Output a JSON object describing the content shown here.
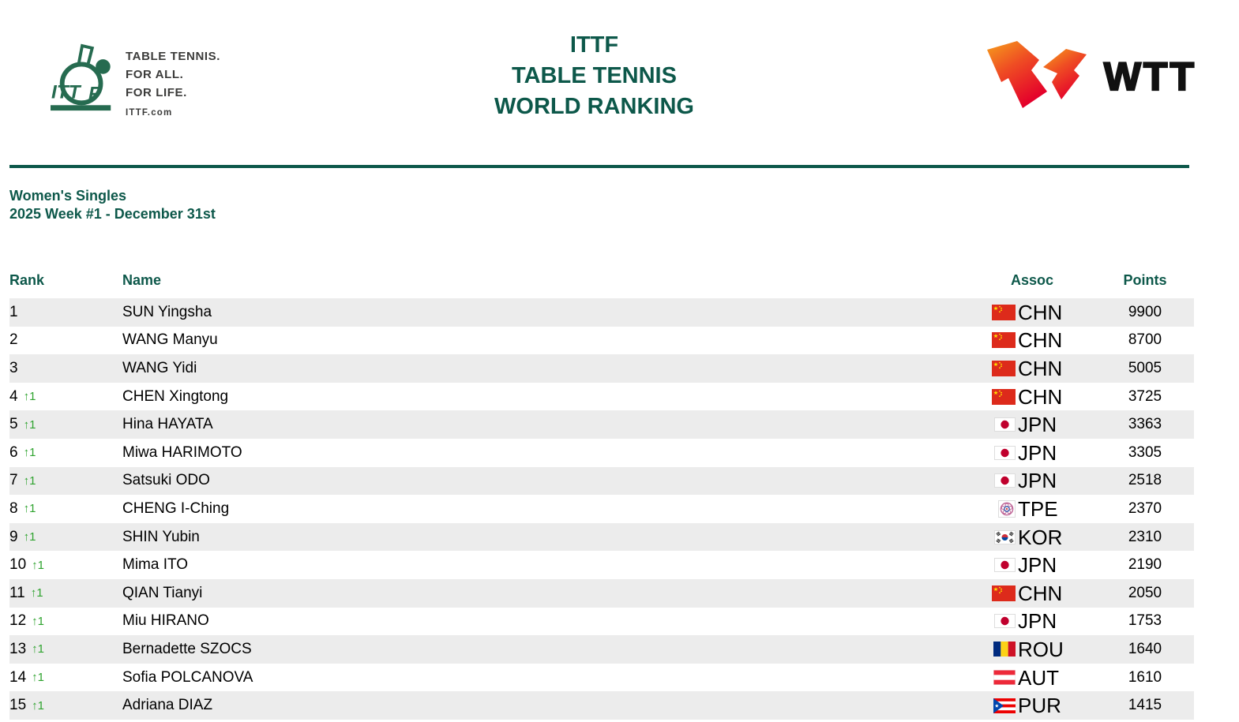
{
  "header": {
    "ittf": {
      "tagline1": "TABLE TENNIS.",
      "tagline2": "FOR ALL.",
      "tagline3": "FOR LIFE.",
      "site": "ITTF.com"
    },
    "title_line1": "ITTF",
    "title_line2": "TABLE TENNIS",
    "title_line3": "WORLD RANKING",
    "wtt_text": "WTT"
  },
  "subtitle": {
    "category": "Women's Singles",
    "week": "2025 Week #1 - December 31st"
  },
  "table": {
    "columns": {
      "rank": "Rank",
      "name": "Name",
      "assoc": "Assoc",
      "points": "Points"
    },
    "rows": [
      {
        "rank": "1",
        "change": "",
        "name": "SUN Yingsha",
        "assoc": "CHN",
        "points": "9900"
      },
      {
        "rank": "2",
        "change": "",
        "name": "WANG Manyu",
        "assoc": "CHN",
        "points": "8700"
      },
      {
        "rank": "3",
        "change": "",
        "name": "WANG Yidi",
        "assoc": "CHN",
        "points": "5005"
      },
      {
        "rank": "4",
        "change": "↑1",
        "name": "CHEN Xingtong",
        "assoc": "CHN",
        "points": "3725"
      },
      {
        "rank": "5",
        "change": "↑1",
        "name": "Hina HAYATA",
        "assoc": "JPN",
        "points": "3363"
      },
      {
        "rank": "6",
        "change": "↑1",
        "name": "Miwa HARIMOTO",
        "assoc": "JPN",
        "points": "3305"
      },
      {
        "rank": "7",
        "change": "↑1",
        "name": "Satsuki ODO",
        "assoc": "JPN",
        "points": "2518"
      },
      {
        "rank": "8",
        "change": "↑1",
        "name": "CHENG I-Ching",
        "assoc": "TPE",
        "points": "2370"
      },
      {
        "rank": "9",
        "change": "↑1",
        "name": "SHIN Yubin",
        "assoc": "KOR",
        "points": "2310"
      },
      {
        "rank": "10",
        "change": "↑1",
        "name": "Mima ITO",
        "assoc": "JPN",
        "points": "2190"
      },
      {
        "rank": "11",
        "change": "↑1",
        "name": "QIAN Tianyi",
        "assoc": "CHN",
        "points": "2050"
      },
      {
        "rank": "12",
        "change": "↑1",
        "name": "Miu HIRANO",
        "assoc": "JPN",
        "points": "1753"
      },
      {
        "rank": "13",
        "change": "↑1",
        "name": "Bernadette SZOCS",
        "assoc": "ROU",
        "points": "1640"
      },
      {
        "rank": "14",
        "change": "↑1",
        "name": "Sofia POLCANOVA",
        "assoc": "AUT",
        "points": "1610"
      },
      {
        "rank": "15",
        "change": "↑1",
        "name": "Adriana DIAZ",
        "assoc": "PUR",
        "points": "1415"
      }
    ]
  },
  "colors": {
    "accent_green": "#0d584a",
    "logo_green": "#266b50",
    "rank_up_green": "#2fa32f",
    "row_stripe": "#ececec",
    "wtt_orange": "#f6a01c",
    "wtt_red": "#e4002b"
  }
}
